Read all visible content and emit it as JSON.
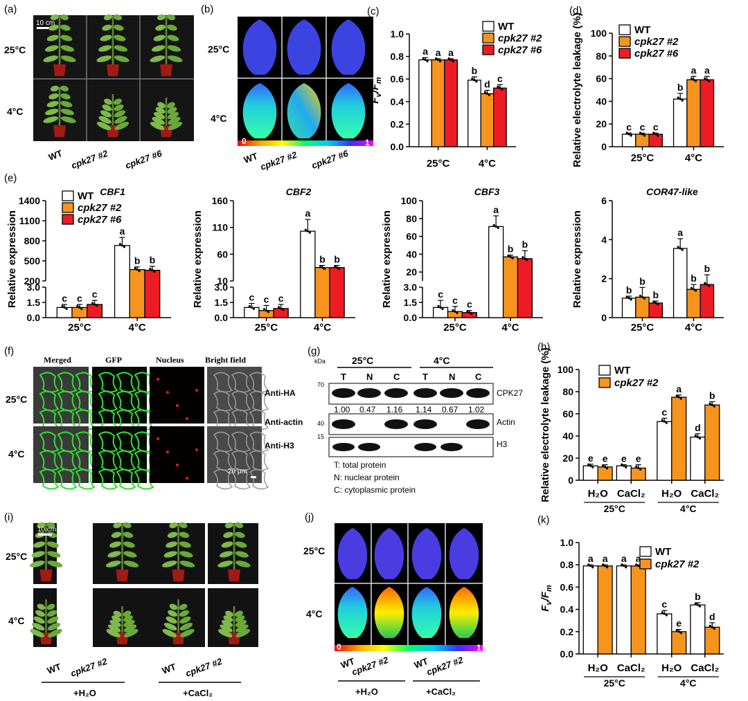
{
  "panels": {
    "a": {
      "letter": "(a)",
      "scalebar": "10 cm",
      "rows": [
        "25°C",
        "4°C"
      ],
      "cols": [
        "WT",
        "cpk27 #2",
        "cpk27 #6"
      ]
    },
    "b": {
      "letter": "(b)",
      "rows": [
        "25°C",
        "4°C"
      ],
      "cols": [
        "WT",
        "cpk27 #2",
        "cpk27 #6"
      ],
      "scale_min": "0",
      "scale_max": "1"
    },
    "f": {
      "letter": "(f)",
      "headers": [
        "Merged",
        "GFP",
        "Nucleus",
        "Bright field"
      ],
      "rows": [
        "25°C",
        "4°C"
      ],
      "scalebar": "20 μm"
    },
    "g": {
      "letter": "(g)",
      "kda_label": "kDa",
      "group_left": "25°C",
      "group_right": "4°C",
      "lanes": [
        "T",
        "N",
        "C",
        "T",
        "N",
        "C"
      ],
      "antibodies": [
        "Anti-HA",
        "Anti-actin",
        "Anti-H3"
      ],
      "proteins": [
        "CPK27",
        "Actin",
        "H3"
      ],
      "markers": [
        "70",
        "40",
        "15"
      ],
      "quant": [
        "1.00",
        "0.47",
        "1.16",
        "1.14",
        "0.67",
        "1.02"
      ],
      "legend": [
        "T:  total protein",
        "N:  nuclear protein",
        "C:  cytoplasmic protein"
      ]
    },
    "i": {
      "letter": "(i)",
      "scalebar": "10 cm",
      "rows": [
        "25°C",
        "4°C"
      ],
      "cols": [
        "WT",
        "cpk27 #2",
        "WT",
        "cpk27 #2"
      ],
      "treat_left": "+H₂O",
      "treat_right": "+CaCl₂"
    },
    "j": {
      "letter": "(j)",
      "rows": [
        "25°C",
        "4°C"
      ],
      "cols": [
        "WT",
        "cpk27 #2",
        "WT",
        "cpk27 #2"
      ],
      "treat_left": "+H₂O",
      "treat_right": "+CaCl₂",
      "scale_min": "0",
      "scale_max": "1"
    }
  },
  "colors": {
    "wt": "#ffffff",
    "cpk27_2": "#f7941d",
    "cpk27_6": "#ed1c24"
  },
  "chart_data": [
    {
      "id": "c",
      "letter": "(c)",
      "type": "bar",
      "ylabel": "Fv/Fm",
      "ylim": [
        0,
        1.0
      ],
      "yticks": [
        "0.0",
        "0.2",
        "0.4",
        "0.6",
        "0.8",
        "1.0"
      ],
      "categories": [
        "25°C",
        "4°C"
      ],
      "series": [
        {
          "name": "WT",
          "values": [
            0.77,
            0.59
          ],
          "err": [
            0.02,
            0.03
          ],
          "letters": [
            "a",
            "b"
          ]
        },
        {
          "name": "cpk27 #2",
          "values": [
            0.77,
            0.47
          ],
          "err": [
            0.01,
            0.03
          ],
          "letters": [
            "a",
            "d"
          ]
        },
        {
          "name": "cpk27 #6",
          "values": [
            0.77,
            0.52
          ],
          "err": [
            0.01,
            0.03
          ],
          "letters": [
            "a",
            "c"
          ]
        }
      ]
    },
    {
      "id": "d",
      "letter": "(d)",
      "type": "bar",
      "ylabel": "Relative electrolyte leakage (%)",
      "ylim": [
        0,
        100
      ],
      "yticks": [
        "0",
        "20",
        "40",
        "60",
        "80",
        "100"
      ],
      "categories": [
        "25°C",
        "4°C"
      ],
      "series": [
        {
          "name": "WT",
          "values": [
            11,
            42
          ],
          "err": [
            1,
            5
          ],
          "letters": [
            "c",
            "b"
          ]
        },
        {
          "name": "cpk27 #2",
          "values": [
            11,
            59
          ],
          "err": [
            1,
            3
          ],
          "letters": [
            "c",
            "a"
          ]
        },
        {
          "name": "cpk27 #6",
          "values": [
            11,
            59
          ],
          "err": [
            1,
            3
          ],
          "letters": [
            "c",
            "a"
          ]
        }
      ]
    },
    {
      "id": "e1",
      "letter": "(e)",
      "title": "CBF1",
      "type": "bar",
      "ylabel": "Relative expression",
      "axis_break": true,
      "lower_range": [
        0,
        3.0
      ],
      "upper_range": [
        200,
        1400
      ],
      "yticks_lower": [
        "0.0",
        "1.5",
        "3.0"
      ],
      "yticks_upper": [
        "200",
        "500",
        "800",
        "1100",
        "1400"
      ],
      "categories": [
        "25°C",
        "4°C"
      ],
      "series": [
        {
          "name": "WT",
          "values": [
            1.0,
            730
          ],
          "err": [
            0.3,
            120
          ],
          "letters": [
            "c",
            "a"
          ]
        },
        {
          "name": "cpk27 #2",
          "values": [
            1.0,
            370
          ],
          "err": [
            0.3,
            40
          ],
          "letters": [
            "c",
            "b"
          ]
        },
        {
          "name": "cpk27 #6",
          "values": [
            1.3,
            360
          ],
          "err": [
            0.4,
            60
          ],
          "letters": [
            "c",
            "b"
          ]
        }
      ]
    },
    {
      "id": "e2",
      "title": "CBF2",
      "type": "bar",
      "ylabel": "Relative expression",
      "axis_break": true,
      "lower_range": [
        0,
        3.0
      ],
      "upper_range": [
        10,
        160
      ],
      "yticks_lower": [
        "0.0",
        "1.5",
        "3.0"
      ],
      "yticks_upper": [
        "10",
        "60",
        "110",
        "160"
      ],
      "categories": [
        "25°C",
        "4°C"
      ],
      "series": [
        {
          "name": "WT",
          "values": [
            1.0,
            103
          ],
          "err": [
            0.4,
            22
          ],
          "letters": [
            "c",
            "a"
          ]
        },
        {
          "name": "cpk27 #2",
          "values": [
            0.7,
            35
          ],
          "err": [
            0.5,
            4
          ],
          "letters": [
            "c",
            "b"
          ]
        },
        {
          "name": "cpk27 #6",
          "values": [
            0.9,
            35
          ],
          "err": [
            0.4,
            4
          ],
          "letters": [
            "c",
            "b"
          ]
        }
      ]
    },
    {
      "id": "e3",
      "title": "CBF3",
      "type": "bar",
      "ylabel": "Relative expression",
      "axis_break": true,
      "lower_range": [
        0,
        3.0
      ],
      "upper_range": [
        10,
        100
      ],
      "yticks_lower": [
        "0.0",
        "1.5",
        "3.0"
      ],
      "yticks_upper": [
        "20",
        "40",
        "60",
        "80",
        "100"
      ],
      "categories": [
        "25°C",
        "4°C"
      ],
      "series": [
        {
          "name": "WT",
          "values": [
            1.0,
            71
          ],
          "err": [
            0.7,
            12
          ],
          "letters": [
            "c",
            "a"
          ]
        },
        {
          "name": "cpk27 #2",
          "values": [
            0.6,
            37
          ],
          "err": [
            0.5,
            2
          ],
          "letters": [
            "c",
            "b"
          ]
        },
        {
          "name": "cpk27 #6",
          "values": [
            0.5,
            35
          ],
          "err": [
            0.2,
            9
          ],
          "letters": [
            "c",
            "b"
          ]
        }
      ]
    },
    {
      "id": "e4",
      "title": "COR47-like",
      "type": "bar",
      "ylabel": "Relative expression",
      "ylim": [
        0,
        6
      ],
      "yticks": [
        "0",
        "2",
        "4",
        "6"
      ],
      "categories": [
        "25°C",
        "4°C"
      ],
      "series": [
        {
          "name": "WT",
          "values": [
            1.0,
            3.55
          ],
          "err": [
            0.1,
            0.5
          ],
          "letters": [
            "b",
            "a"
          ]
        },
        {
          "name": "cpk27 #2",
          "values": [
            1.05,
            1.45
          ],
          "err": [
            0.5,
            0.25
          ],
          "letters": [
            "b",
            "b"
          ]
        },
        {
          "name": "cpk27 #6",
          "values": [
            0.75,
            1.7
          ],
          "err": [
            0.1,
            0.5
          ],
          "letters": [
            "b",
            "b"
          ]
        }
      ]
    },
    {
      "id": "h",
      "letter": "(h)",
      "type": "bar",
      "ylabel": "Relative electrolyte leakage (%)",
      "ylim": [
        0,
        100
      ],
      "yticks": [
        "0",
        "20",
        "40",
        "60",
        "80",
        "100"
      ],
      "categories": [
        "H₂O",
        "CaCl₂",
        "H₂O",
        "CaCl₂"
      ],
      "groups": [
        "25°C",
        "4°C"
      ],
      "series": [
        {
          "name": "WT",
          "values": [
            13,
            13,
            53,
            39
          ],
          "err": [
            1.5,
            1,
            3,
            3
          ],
          "letters": [
            "e",
            "e",
            "c",
            "d"
          ]
        },
        {
          "name": "cpk27 #2",
          "values": [
            12,
            11,
            75,
            68
          ],
          "err": [
            2,
            3,
            2,
            3
          ],
          "letters": [
            "e",
            "e",
            "a",
            "b"
          ]
        }
      ]
    },
    {
      "id": "k",
      "letter": "(k)",
      "type": "bar",
      "ylabel": "Fv/Fm",
      "ylim": [
        0,
        1.0
      ],
      "yticks": [
        "0.0",
        "0.2",
        "0.4",
        "0.6",
        "0.8",
        "1.0"
      ],
      "categories": [
        "H₂O",
        "CaCl₂",
        "H₂O",
        "CaCl₂"
      ],
      "groups": [
        "25°C",
        "4°C"
      ],
      "series": [
        {
          "name": "WT",
          "values": [
            0.79,
            0.79,
            0.36,
            0.44
          ],
          "err": [
            0.01,
            0.01,
            0.03,
            0.02
          ],
          "letters": [
            "a",
            "a",
            "c",
            "b"
          ]
        },
        {
          "name": "cpk27 #2",
          "values": [
            0.79,
            0.79,
            0.2,
            0.24
          ],
          "err": [
            0.01,
            0.01,
            0.02,
            0.04
          ],
          "letters": [
            "a",
            "a",
            "e",
            "d"
          ]
        }
      ]
    }
  ]
}
